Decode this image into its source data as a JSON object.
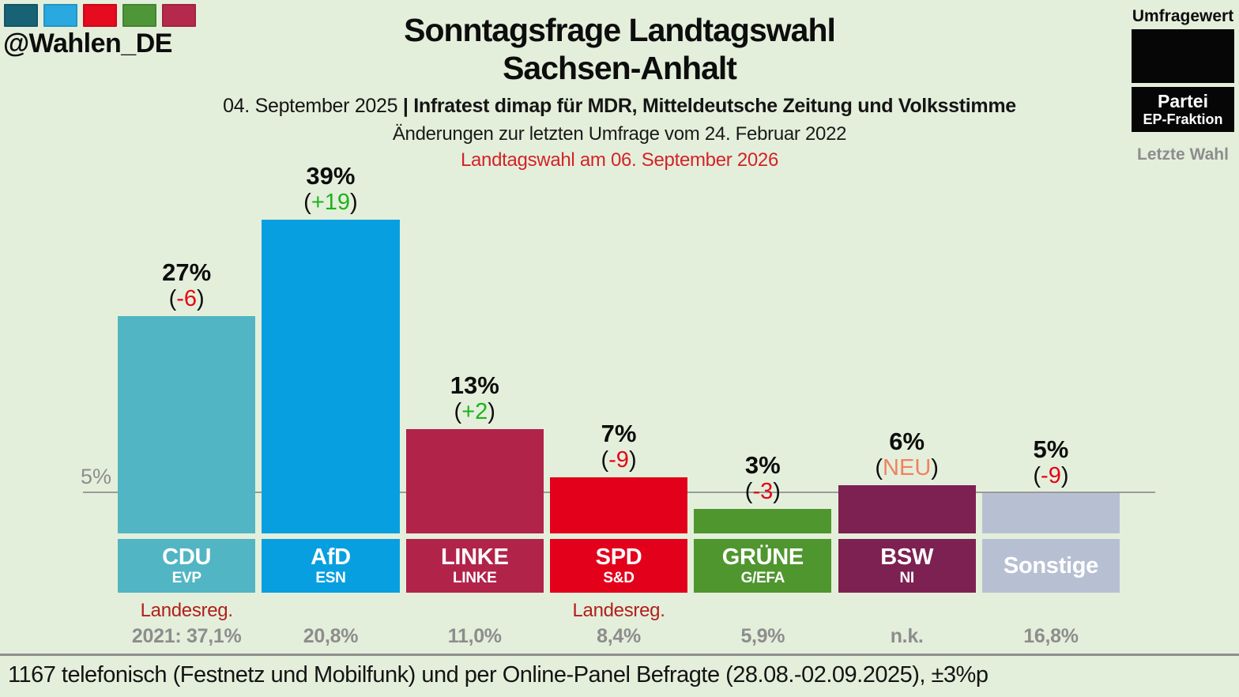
{
  "branding": {
    "handle": "@Wahlen_DE",
    "logo_colors": [
      "#176275",
      "#2aa9e0",
      "#e60b1e",
      "#4f9639",
      "#b5294c"
    ]
  },
  "header": {
    "title_line1": "Sonntagsfrage Landtagswahl",
    "title_line2": "Sachsen-Anhalt",
    "date": "04. September 2025 ",
    "source": "| Infratest dimap für MDR, Mitteldeutsche Zeitung und Volksstimme",
    "change_note": "Änderungen zur letzten Umfrage vom 24. Februar 2022",
    "election_note": "Landtagswahl am 06. September 2026"
  },
  "legend": {
    "umfragewert": "Umfragewert",
    "partei": "Partei",
    "ep_fraktion": "EP-Fraktion",
    "letzte_wahl": "Letzte Wahl"
  },
  "chart_data": {
    "type": "bar",
    "title": "Sonntagsfrage Landtagswahl Sachsen-Anhalt",
    "ylabel": "Umfragewert (%)",
    "ylim": [
      0,
      42
    ],
    "threshold": {
      "value": 5,
      "label": "5%"
    },
    "categories": [
      "CDU",
      "AfD",
      "LINKE",
      "SPD",
      "GRÜNE",
      "BSW",
      "Sonstige"
    ],
    "values": [
      27,
      39,
      13,
      7,
      3,
      6,
      5
    ],
    "parties": [
      {
        "name": "CDU",
        "ep_group": "EVP",
        "value": 27,
        "value_label": "27%",
        "change_label": "-6",
        "change_type": "negative",
        "color": "#52b5c3",
        "note": "Landesreg.",
        "last_result": "2021: 37,1%"
      },
      {
        "name": "AfD",
        "ep_group": "ESN",
        "value": 39,
        "value_label": "39%",
        "change_label": "+19",
        "change_type": "positive",
        "color": "#089fe0",
        "note": "",
        "last_result": "20,8%"
      },
      {
        "name": "LINKE",
        "ep_group": "LINKE",
        "value": 13,
        "value_label": "13%",
        "change_label": "+2",
        "change_type": "positive",
        "color": "#b2234a",
        "note": "",
        "last_result": "11,0%"
      },
      {
        "name": "SPD",
        "ep_group": "S&D",
        "value": 7,
        "value_label": "7%",
        "change_label": "-9",
        "change_type": "negative",
        "color": "#e3001b",
        "note": "Landesreg.",
        "last_result": "8,4%"
      },
      {
        "name": "GRÜNE",
        "ep_group": "G/EFA",
        "value": 3,
        "value_label": "3%",
        "change_label": "-3",
        "change_type": "negative",
        "color": "#4f962e",
        "note": "",
        "last_result": "5,9%"
      },
      {
        "name": "BSW",
        "ep_group": "NI",
        "value": 6,
        "value_label": "6%",
        "change_label": "NEU",
        "change_type": "new",
        "color": "#7d2152",
        "note": "",
        "last_result": "n.k."
      },
      {
        "name": "Sonstige",
        "ep_group": "",
        "value": 5,
        "value_label": "5%",
        "change_label": "-9",
        "change_type": "negative",
        "color": "#b7c0d3",
        "note": "",
        "last_result": "16,8%"
      }
    ]
  },
  "footer": {
    "text": "1167 telefonisch (Festnetz und Mobilfunk) und per Online-Panel Befragte (28.08.-02.09.2025), ±3%p"
  }
}
